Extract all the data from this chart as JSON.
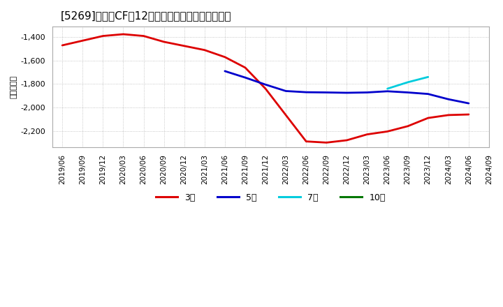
{
  "title": "[5269]　投賄CFの12か月移動合計の平均値の推移",
  "ylabel": "（百万円）",
  "background_color": "#ffffff",
  "plot_bg_color": "#ffffff",
  "grid_color": "#999999",
  "ylim": [
    -2340,
    -1310
  ],
  "yticks": [
    -2200,
    -2000,
    -1800,
    -1600,
    -1400
  ],
  "legend": [
    {
      "label": "3年",
      "color": "#dd0000"
    },
    {
      "label": "5年",
      "color": "#0000cc"
    },
    {
      "label": "7年",
      "color": "#00ccdd"
    },
    {
      "label": "10年",
      "color": "#007700"
    }
  ],
  "series_3y": {
    "color": "#dd0000",
    "x": [
      0,
      1,
      2,
      3,
      4,
      5,
      6,
      7,
      8,
      9,
      10,
      11,
      12,
      13,
      14,
      15,
      16,
      17,
      18,
      19,
      20
    ],
    "y": [
      -1470,
      -1430,
      -1390,
      -1375,
      -1390,
      -1440,
      -1475,
      -1510,
      -1570,
      -1660,
      -1840,
      -2065,
      -2290,
      -2300,
      -2280,
      -2230,
      -2205,
      -2160,
      -2090,
      -2065,
      -2060
    ]
  },
  "series_5y": {
    "color": "#0000cc",
    "x": [
      8,
      9,
      10,
      11,
      12,
      13,
      14,
      15,
      16,
      17,
      18,
      19,
      20
    ],
    "y": [
      -1690,
      -1745,
      -1805,
      -1860,
      -1870,
      -1872,
      -1875,
      -1872,
      -1862,
      -1872,
      -1885,
      -1930,
      -1965
    ]
  },
  "series_7y": {
    "color": "#00ccdd",
    "x": [
      16,
      17,
      18
    ],
    "y": [
      -1840,
      -1785,
      -1740
    ]
  },
  "series_10y": {
    "color": "#007700",
    "x": [],
    "y": []
  },
  "x_tick_labels": [
    "2019/06",
    "2019/09",
    "2019/12",
    "2020/03",
    "2020/06",
    "2020/09",
    "2020/12",
    "2021/03",
    "2021/06",
    "2021/09",
    "2021/12",
    "2022/03",
    "2022/06",
    "2022/09",
    "2022/12",
    "2023/03",
    "2023/06",
    "2023/09",
    "2023/12",
    "2024/03",
    "2024/06",
    "2024/09"
  ],
  "line_width": 2.0,
  "title_fontsize": 11,
  "tick_fontsize": 7.5,
  "ylabel_fontsize": 8
}
